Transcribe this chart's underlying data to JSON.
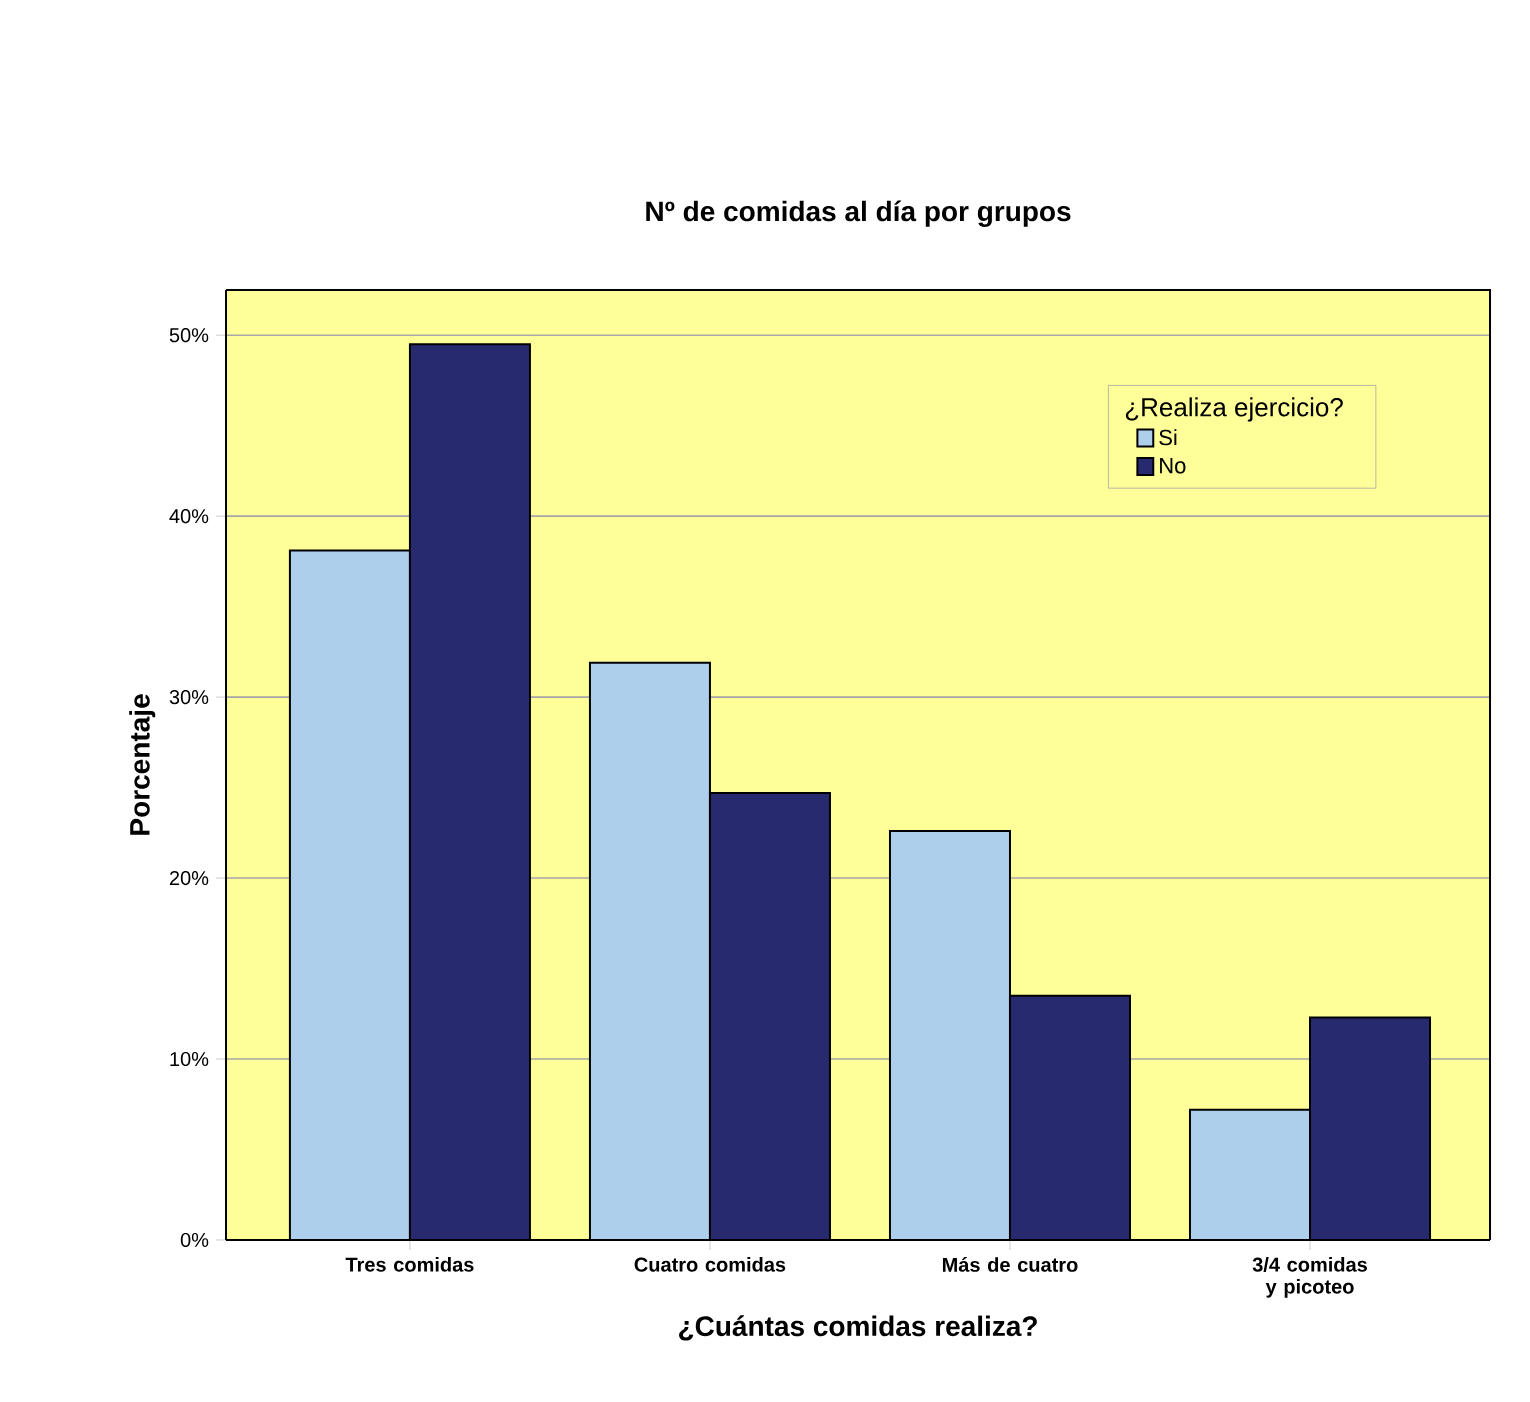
{
  "chart_data": {
    "type": "bar",
    "title": "Nº de comidas al día por grupos",
    "xlabel": "¿Cuántas comidas realiza?",
    "ylabel": "Porcentaje",
    "legend_title": "¿Realiza ejercicio?",
    "categories": [
      "Tres comidas",
      "Cuatro comidas",
      "Más de cuatro",
      "3/4 comidas y picoteo"
    ],
    "series": [
      {
        "name": "Si",
        "color": "#aecfeb",
        "values": [
          38.1,
          31.9,
          22.6,
          7.2
        ]
      },
      {
        "name": "No",
        "color": "#282a6f",
        "values": [
          49.5,
          24.7,
          13.5,
          12.3
        ]
      }
    ],
    "ylim": [
      0,
      52.5
    ],
    "yticks": [
      {
        "value": 0,
        "label": "0%"
      },
      {
        "value": 10,
        "label": "10%"
      },
      {
        "value": 20,
        "label": "20%"
      },
      {
        "value": 30,
        "label": "30%"
      },
      {
        "value": 40,
        "label": "40%"
      },
      {
        "value": 50,
        "label": "50%"
      }
    ],
    "grid": "y",
    "legend": "top right"
  }
}
